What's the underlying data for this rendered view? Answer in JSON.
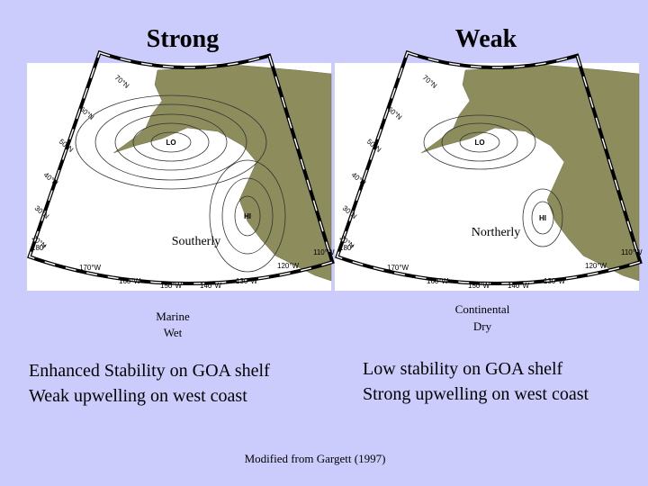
{
  "panels": [
    {
      "title": "Strong",
      "wind": "Southerly",
      "air": [
        "Marine",
        "Wet"
      ],
      "statement": [
        "Enhanced Stability on GOA shelf",
        "Weak upwelling on west coast"
      ],
      "low": "LO",
      "high": "HI"
    },
    {
      "title": "Weak",
      "wind": "Northerly",
      "air": [
        "Continental",
        "Dry"
      ],
      "statement": [
        "Low stability on GOA shelf",
        "Strong upwelling on west coast"
      ],
      "low": "LO",
      "high": "HI"
    }
  ],
  "map": {
    "lat_labels": [
      "70°N",
      "60°N",
      "50°N",
      "40°N",
      "30°N",
      "20°N"
    ],
    "lon_labels": [
      "180°",
      "170°W",
      "160°W",
      "150°W",
      "140°W",
      "130°W",
      "120°W",
      "110°W"
    ]
  },
  "citation": "Modified from Gargett (1997)"
}
